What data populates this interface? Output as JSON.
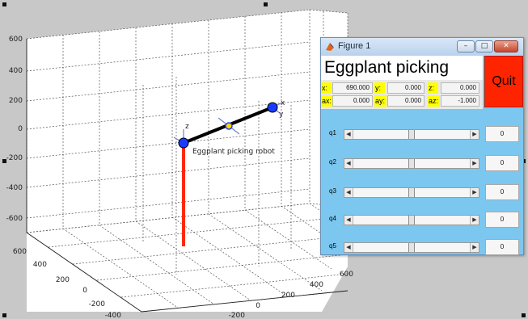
{
  "plot": {
    "robot_label": "Eggplant picking robot",
    "axis_labels_small": {
      "x": "x",
      "y": "y",
      "z": "z"
    },
    "z_ticks": [
      "600",
      "400",
      "200",
      "0",
      "-200",
      "-400",
      "-600"
    ],
    "y_ticks": [
      "600",
      "400",
      "200",
      "0",
      "-200",
      "-400"
    ],
    "x_ticks": [
      "600",
      "400",
      "200",
      "0",
      "-200"
    ],
    "colors": {
      "link": "#000000",
      "base": "#ff2a00",
      "joint": "#1a3cff",
      "frame": "#6f7fd6"
    }
  },
  "window": {
    "title": "Figure 1",
    "icon": "matlab-icon",
    "buttons": {
      "minimize": "–",
      "maximize": "□",
      "close": "✕"
    }
  },
  "app": {
    "title": "Eggplant picking",
    "quit_label": "Quit",
    "pose": {
      "x": {
        "label": "x:",
        "value": "690.000"
      },
      "y": {
        "label": "y:",
        "value": "0.000"
      },
      "z": {
        "label": "z:",
        "value": "0.000"
      },
      "ax": {
        "label": "ax:",
        "value": "0.000"
      },
      "ay": {
        "label": "ay:",
        "value": "0.000"
      },
      "az": {
        "label": "az:",
        "value": "-1.000"
      }
    },
    "joints": [
      {
        "label": "q1",
        "value": "0",
        "position": 0.5
      },
      {
        "label": "q2",
        "value": "0",
        "position": 0.5
      },
      {
        "label": "q3",
        "value": "0",
        "position": 0.5
      },
      {
        "label": "q4",
        "value": "0",
        "position": 0.5
      },
      {
        "label": "q5",
        "value": "0",
        "position": 0.5
      }
    ],
    "colors": {
      "panel_bg": "#7cc7f0",
      "quit_bg": "#ff2400",
      "label_bg": "#ffff00"
    }
  }
}
